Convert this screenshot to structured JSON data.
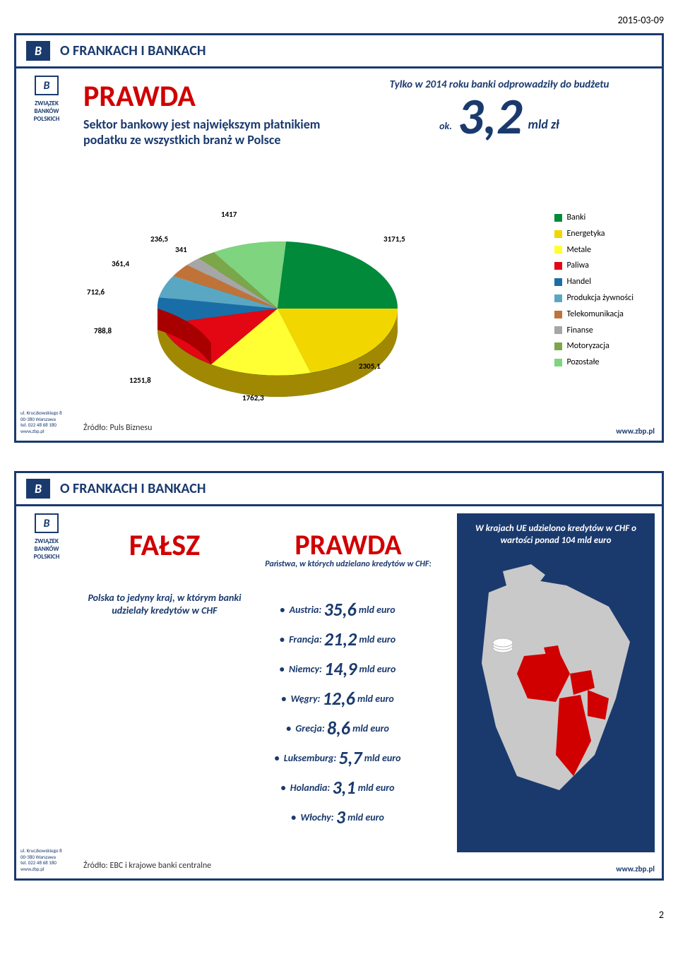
{
  "page": {
    "date": "2015-03-09",
    "number": "2"
  },
  "common": {
    "slide_title": "O FRANKACH I BANKACH",
    "org_name": "ZWIĄZEK BANKÓW POLSKICH",
    "logo_letter": "B",
    "address": [
      "ul. Kruczkowskiego 8",
      "00-380 Warszawa",
      "tel. 022 48 68 180",
      "www.zbp.pl"
    ],
    "footer_url": "www.zbp.pl"
  },
  "slide1": {
    "prawda": "PRAWDA",
    "subtitle": "Sektor bankowy jest największym płatnikiem podatku ze wszystkich branż w Polsce",
    "right_line": "Tylko w 2014 roku banki odprowadziły do budżetu",
    "ok": "ok.",
    "big_value": "3,2",
    "unit": "mld zł",
    "pie": {
      "type": "pie-3d",
      "background_color": "#ffffff",
      "slices": [
        {
          "label": "Banki",
          "value": 3171.5,
          "color": "#008a3a",
          "text": "3171,5"
        },
        {
          "label": "Energetyka",
          "value": 2305.1,
          "color": "#f2d600",
          "text": "2305,1"
        },
        {
          "label": "Metale",
          "value": 1762.3,
          "color": "#ffff33",
          "text": "1762,3"
        },
        {
          "label": "Paliwa",
          "value": 1251.8,
          "color": "#e30613",
          "text": "1251,8"
        },
        {
          "label": "Handel",
          "value": 788.8,
          "color": "#1a6ea8",
          "text": "788,8"
        },
        {
          "label": "Produkcja żywności",
          "value": 712.6,
          "color": "#5aa7c4",
          "text": "712,6"
        },
        {
          "label": "Telekomunikacja",
          "value": 361.4,
          "color": "#c07338",
          "text": "361,4"
        },
        {
          "label": "Finanse",
          "value": 236.5,
          "color": "#a6a6a6",
          "text": "236,5"
        },
        {
          "label": "Motoryzacja",
          "value": 341,
          "color": "#7ca64a",
          "text": "341"
        },
        {
          "label": "Pozostałe",
          "value": 1417,
          "color": "#7fd47f",
          "text": "1417"
        }
      ],
      "label_font_size": 11,
      "label_color": "#000000"
    },
    "source": "Źródło: Puls Biznesu"
  },
  "slide2": {
    "falsz": "FAŁSZ",
    "prawda": "PRAWDA",
    "sub_mid": "Państwa, w których udzielano kredytów w CHF:",
    "left_text": "Polska to jedyny kraj, w którym banki udzielały kredytów w CHF",
    "countries": [
      {
        "name": "Austria",
        "value": "35,6",
        "unit": "mld euro"
      },
      {
        "name": "Francja",
        "value": "21,2",
        "unit": "mld euro"
      },
      {
        "name": "Niemcy",
        "value": "14,9",
        "unit": "mld euro"
      },
      {
        "name": "Węgry",
        "value": "12,6",
        "unit": "mld euro"
      },
      {
        "name": "Grecja",
        "value": "8,6",
        "unit": "mld euro"
      },
      {
        "name": "Luksemburg",
        "value": "5,7",
        "unit": "mld euro"
      },
      {
        "name": "Holandia",
        "value": "3,1",
        "unit": "mld euro"
      },
      {
        "name": "Włochy",
        "value": "3",
        "unit": "mld euro"
      }
    ],
    "right_caption": "W krajach UE udzielono kredytów w CHF  o wartości ponad 104 mld euro",
    "map": {
      "type": "map",
      "background_color": "#1a3a6e",
      "ocean_color": "#1a3a6e",
      "land_color": "#c9c9c9",
      "highlight_color": "#d10000",
      "highlighted": [
        "Austria",
        "France",
        "Germany",
        "Hungary",
        "Greece",
        "Luxembourg",
        "Netherlands",
        "Italy",
        "Poland"
      ]
    },
    "source": "Źródło: EBC i krajowe banki centralne"
  }
}
